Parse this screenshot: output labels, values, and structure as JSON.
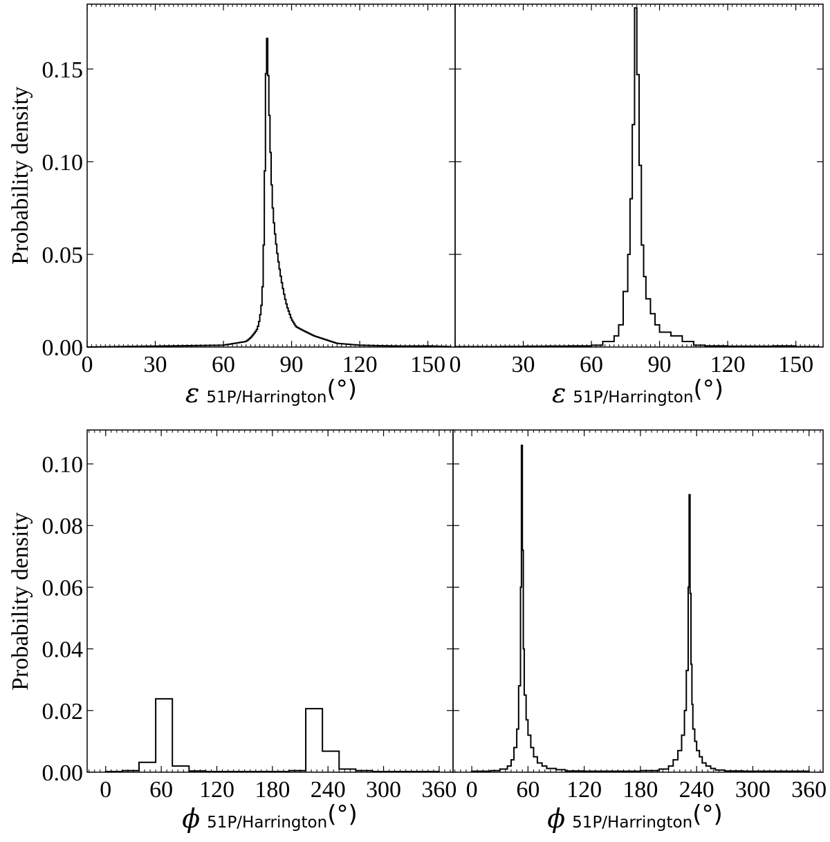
{
  "chart_data": [
    {
      "type": "histogram",
      "panel": "top-left",
      "xlabel_symbol": "ε",
      "xlabel_subscript": "51P/Harrington",
      "xlabel_unit": "(°)",
      "ylabel": "Probability density",
      "xlim": [
        0,
        162
      ],
      "ylim": [
        0,
        0.185
      ],
      "xticks": [
        0,
        30,
        60,
        90,
        120,
        150
      ],
      "xtick_labels": [
        "0",
        "30",
        "60",
        "90",
        "120",
        "150"
      ],
      "yticks": [
        0.0,
        0.05,
        0.1,
        0.15
      ],
      "ytick_labels": [
        "0.00",
        "0.05",
        "0.10",
        "0.15"
      ],
      "bin_width": 0.5,
      "x": [
        60,
        65,
        70,
        72,
        74,
        75,
        76,
        77,
        77.5,
        78,
        78.5,
        79,
        79.5,
        80,
        80.5,
        81,
        81.5,
        82,
        83,
        84,
        85,
        86,
        87,
        88,
        90,
        92,
        95,
        100,
        105,
        110,
        120,
        130,
        140,
        150,
        160
      ],
      "y": [
        0.001,
        0.002,
        0.003,
        0.005,
        0.008,
        0.01,
        0.015,
        0.025,
        0.04,
        0.07,
        0.12,
        0.175,
        0.158,
        0.135,
        0.115,
        0.095,
        0.08,
        0.07,
        0.058,
        0.048,
        0.04,
        0.033,
        0.027,
        0.022,
        0.015,
        0.011,
        0.009,
        0.006,
        0.004,
        0.002,
        0.001,
        0.0007,
        0.0005,
        0.0006,
        0.0002
      ]
    },
    {
      "type": "histogram",
      "panel": "top-right",
      "xlabel_symbol": "ε",
      "xlabel_subscript": "51P/Harrington",
      "xlabel_unit": "(°)",
      "xlim": [
        0,
        162
      ],
      "ylim": [
        0,
        0.185
      ],
      "xticks": [
        0,
        30,
        60,
        90,
        120,
        150
      ],
      "xtick_labels": [
        "0",
        "30",
        "60",
        "90",
        "120",
        "150"
      ],
      "yticks": [
        0.0,
        0.05,
        0.1,
        0.15
      ],
      "edges": [
        0,
        10,
        20,
        30,
        40,
        50,
        60,
        65,
        70,
        72,
        74,
        76,
        77,
        78,
        79,
        80,
        81,
        82,
        83,
        84,
        86,
        88,
        90,
        95,
        100,
        105,
        110,
        120,
        130,
        140,
        150,
        160
      ],
      "values": [
        0.0002,
        0.0002,
        0.0003,
        0.0004,
        0.0005,
        0.0006,
        0.001,
        0.003,
        0.006,
        0.012,
        0.03,
        0.05,
        0.08,
        0.12,
        0.183,
        0.147,
        0.098,
        0.055,
        0.038,
        0.026,
        0.018,
        0.012,
        0.008,
        0.006,
        0.003,
        0.001,
        0.0006,
        0.0004,
        0.0004,
        0.0006,
        0.0002
      ]
    },
    {
      "type": "histogram",
      "panel": "bottom-left",
      "xlabel_symbol": "ϕ",
      "xlabel_subscript": "51P/Harrington",
      "xlabel_unit": "(°)",
      "ylabel": "Probability density",
      "xlim": [
        -20,
        375
      ],
      "ylim": [
        0,
        0.111
      ],
      "xticks": [
        0,
        60,
        120,
        180,
        240,
        300,
        360
      ],
      "xtick_labels": [
        "0",
        "60",
        "120",
        "180",
        "240",
        "300",
        "360"
      ],
      "yticks": [
        0.0,
        0.02,
        0.04,
        0.06,
        0.08,
        0.1
      ],
      "ytick_labels": [
        "0.00",
        "0.02",
        "0.04",
        "0.06",
        "0.08",
        "0.10"
      ],
      "edges": [
        0,
        18,
        36,
        54,
        72,
        90,
        108,
        126,
        144,
        162,
        180,
        198,
        216,
        234,
        252,
        270,
        288,
        306,
        324,
        342,
        360
      ],
      "values": [
        0.0002,
        0.0005,
        0.0032,
        0.0238,
        0.002,
        0.0004,
        0.0002,
        0.0002,
        0.0002,
        0.0002,
        0.0002,
        0.0005,
        0.0206,
        0.0068,
        0.001,
        0.0005,
        0.0002,
        0.0002,
        0.0002,
        0.0002
      ]
    },
    {
      "type": "histogram",
      "panel": "bottom-right",
      "xlabel_symbol": "ϕ",
      "xlabel_subscript": "51P/Harrington",
      "xlabel_unit": "(°)",
      "xlim": [
        -20,
        375
      ],
      "ylim": [
        0,
        0.111
      ],
      "xticks": [
        0,
        60,
        120,
        180,
        240,
        300,
        360
      ],
      "xtick_labels": [
        "0",
        "60",
        "120",
        "180",
        "240",
        "300",
        "360"
      ],
      "yticks": [
        0.0,
        0.02,
        0.04,
        0.06,
        0.08,
        0.1
      ],
      "edges": [
        0,
        20,
        30,
        38,
        42,
        45,
        48,
        50,
        52,
        53,
        54,
        55,
        56,
        58,
        60,
        63,
        66,
        70,
        75,
        80,
        90,
        100,
        120,
        150,
        180,
        200,
        210,
        215,
        220,
        224,
        227,
        229,
        231,
        232,
        233,
        234,
        235,
        236,
        238,
        240,
        243,
        246,
        250,
        255,
        260,
        270,
        290,
        320,
        360
      ],
      "values": [
        0.0003,
        0.0005,
        0.001,
        0.002,
        0.004,
        0.008,
        0.014,
        0.028,
        0.06,
        0.106,
        0.072,
        0.04,
        0.025,
        0.017,
        0.012,
        0.008,
        0.005,
        0.003,
        0.002,
        0.0012,
        0.0008,
        0.0004,
        0.0003,
        0.0003,
        0.0005,
        0.001,
        0.002,
        0.004,
        0.007,
        0.012,
        0.02,
        0.033,
        0.06,
        0.09,
        0.058,
        0.035,
        0.022,
        0.014,
        0.01,
        0.007,
        0.005,
        0.003,
        0.002,
        0.0012,
        0.0007,
        0.0004,
        0.0003,
        0.0003
      ]
    }
  ]
}
